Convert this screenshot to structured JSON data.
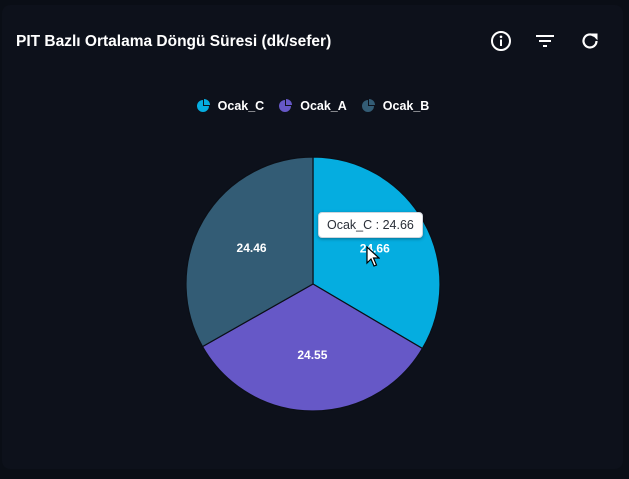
{
  "card": {
    "title": "PIT Bazlı Ortalama Döngü Süresi (dk/sefer)"
  },
  "toolbar": {
    "icons": [
      "info-icon",
      "filter-icon",
      "refresh-icon"
    ]
  },
  "tooltip": {
    "series": "Ocak_C",
    "value": "24.66"
  },
  "chart_data": {
    "type": "pie",
    "title": "PIT Bazlı Ortalama Döngü Süresi (dk/sefer)",
    "legend_position": "top-center",
    "slices": [
      {
        "label": "Ocak_C",
        "value": 24.66,
        "display": "24.66",
        "color": "#05ade0"
      },
      {
        "label": "Ocak_A",
        "value": 24.55,
        "display": "24.55",
        "color": "#6658c7"
      },
      {
        "label": "Ocak_B",
        "value": 24.46,
        "display": "24.46",
        "color": "#335c75"
      }
    ],
    "legend": [
      {
        "label": "Ocak_C",
        "color": "#05ade0"
      },
      {
        "label": "Ocak_A",
        "color": "#6658c7"
      },
      {
        "label": "Ocak_B",
        "color": "#335c75"
      }
    ]
  }
}
